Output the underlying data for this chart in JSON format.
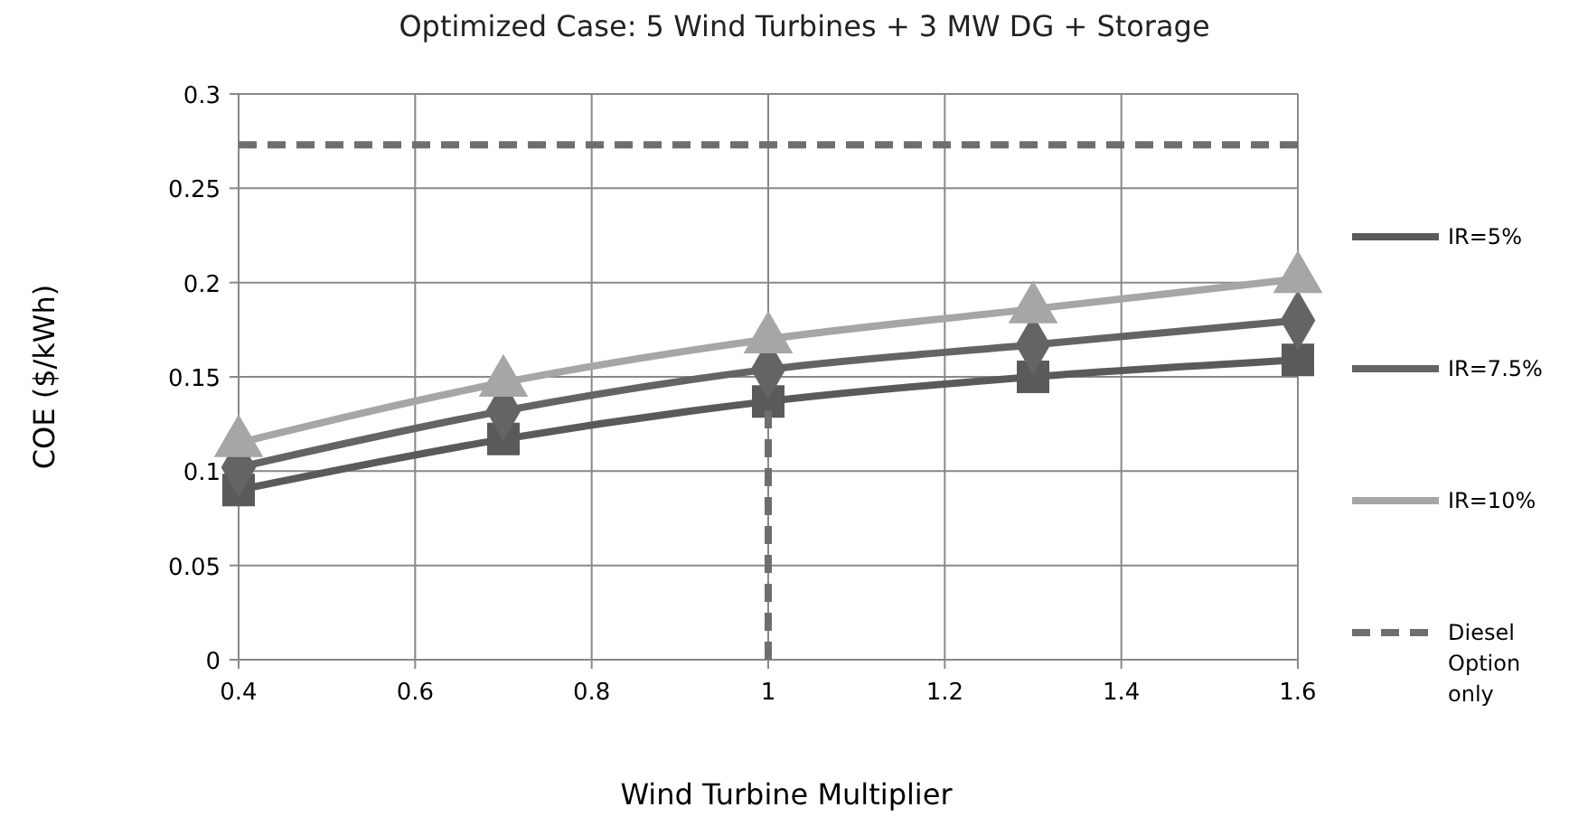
{
  "chart_data": {
    "type": "line",
    "title": "Optimized Case:  5 Wind Turbines + 3 MW DG + Storage",
    "xlabel": "Wind Turbine Multiplier",
    "ylabel": "COE ($/kWh)",
    "x": [
      0.4,
      0.7,
      1,
      1.3,
      1.6
    ],
    "series": [
      {
        "name": "IR=5%",
        "color": "#5a5a5a",
        "marker": "square",
        "values": [
          0.09,
          0.117,
          0.137,
          0.15,
          0.159
        ]
      },
      {
        "name": "IR=7.5%",
        "color": "#646464",
        "marker": "diamond",
        "values": [
          0.102,
          0.132,
          0.154,
          0.167,
          0.18
        ]
      },
      {
        "name": "IR=10%",
        "color": "#a6a6a6",
        "marker": "triangle",
        "values": [
          0.115,
          0.147,
          0.17,
          0.186,
          0.202
        ]
      },
      {
        "name": "Diesel Option only",
        "color": "#6e6e6e",
        "marker": "none",
        "line_style": "dashed",
        "x": [
          0.4,
          1.6
        ],
        "values": [
          0.273,
          0.273
        ]
      },
      {
        "color": "#6e6e6e",
        "marker": "none",
        "line_style": "dashed",
        "x": [
          1,
          1
        ],
        "values": [
          0,
          0.137
        ]
      }
    ],
    "xlim": [
      0.4,
      1.6
    ],
    "xticks": [
      0.4,
      0.6,
      0.8,
      1,
      1.2,
      1.4,
      1.6
    ],
    "ylim": [
      0,
      0.3
    ],
    "yticks": [
      0,
      0.05,
      0.1,
      0.15,
      0.2,
      0.25,
      0.3
    ],
    "grid": true,
    "legend": "right"
  }
}
